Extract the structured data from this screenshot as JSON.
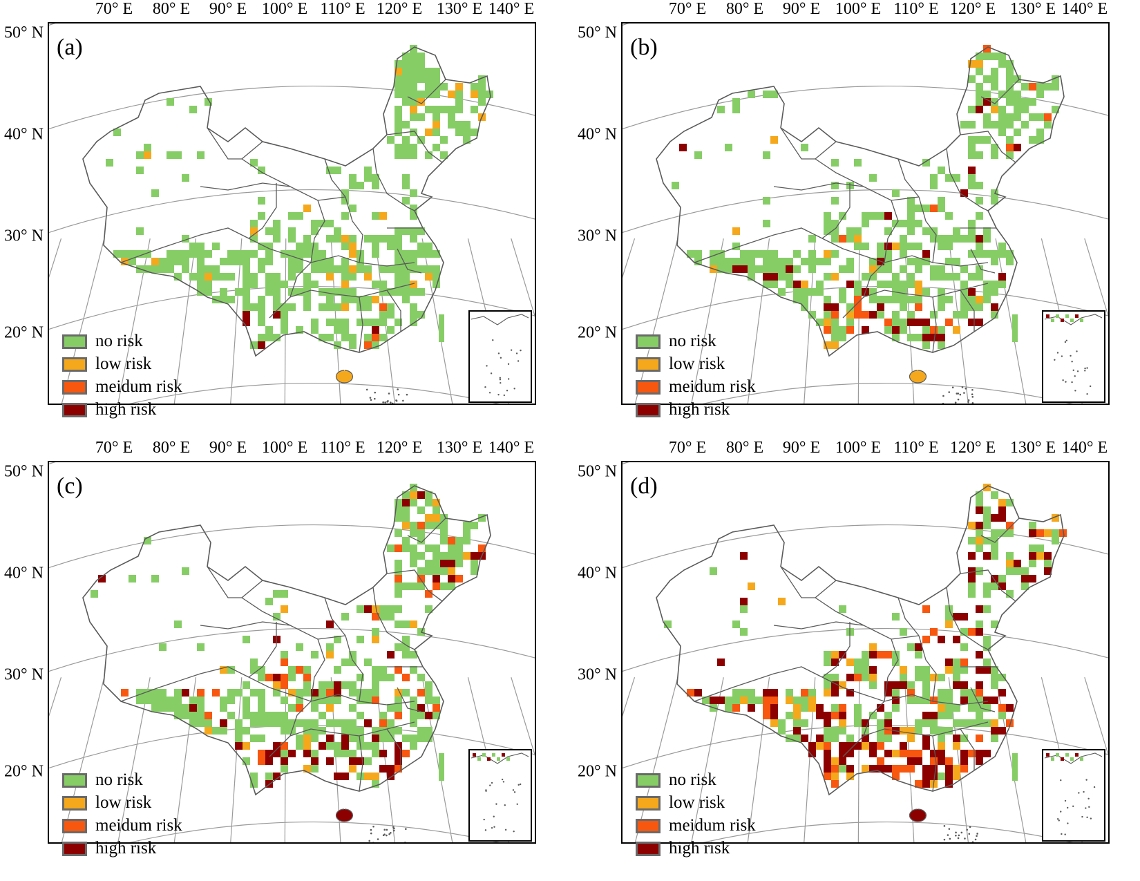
{
  "longitude_labels": [
    "70° E",
    "80° E",
    "90° E",
    "100° E",
    "110° E",
    "120° E",
    "130° E",
    "140° E"
  ],
  "latitude_labels": [
    "50° N",
    "40° N",
    "30° N",
    "20° N"
  ],
  "legend": [
    {
      "label": "no risk",
      "color": "#86cd66"
    },
    {
      "label": "low risk",
      "color": "#f5a81c"
    },
    {
      "label": "meidum risk",
      "color": "#f7570f"
    },
    {
      "label": "high risk",
      "color": "#8c0000"
    }
  ],
  "panels": [
    {
      "label": "(a)",
      "key": "a"
    },
    {
      "label": "(b)",
      "key": "b"
    },
    {
      "label": "(c)",
      "key": "c"
    },
    {
      "label": "(d)",
      "key": "d"
    }
  ]
}
